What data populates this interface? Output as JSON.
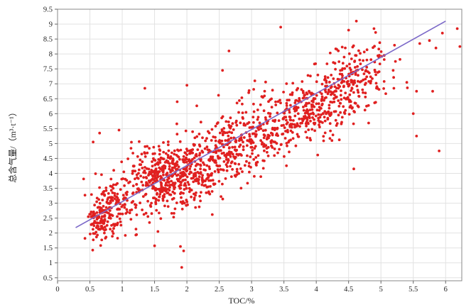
{
  "chart_data": {
    "type": "scatter",
    "title": "",
    "xlabel": "TOC/%",
    "ylabel": "总含气量/（m³·t⁻¹）",
    "xlim": [
      0,
      6.25
    ],
    "ylim": [
      0.4,
      9.5
    ],
    "x_ticks": [
      "0",
      "0.5",
      "1",
      "1.5",
      "2",
      "2.5",
      "3",
      "3.5",
      "4",
      "4.5",
      "5",
      "5.5",
      "6"
    ],
    "y_ticks": [
      "0.5",
      "1",
      "1.5",
      "2",
      "2.5",
      "3",
      "3.5",
      "4",
      "4.5",
      "5",
      "5.5",
      "6",
      "6.5",
      "7",
      "7.5",
      "8",
      "8.5",
      "9",
      "9.5"
    ],
    "grid": true,
    "marker_color": "#e02020",
    "trend_line_color": "#7b68c8",
    "trend_line": {
      "x": [
        0.28,
        6.0
      ],
      "y": [
        2.18,
        9.1
      ]
    },
    "clusters": [
      {
        "cx": 0.65,
        "cy": 2.5,
        "sx": 0.12,
        "sy": 0.45,
        "n": 120
      },
      {
        "cx": 0.95,
        "cy": 3.0,
        "sx": 0.15,
        "sy": 0.45,
        "n": 110
      },
      {
        "cx": 1.55,
        "cy": 3.8,
        "sx": 0.22,
        "sy": 0.55,
        "n": 300
      },
      {
        "cx": 2.05,
        "cy": 4.1,
        "sx": 0.22,
        "sy": 0.55,
        "n": 260
      },
      {
        "cx": 2.65,
        "cy": 4.8,
        "sx": 0.25,
        "sy": 0.6,
        "n": 200
      },
      {
        "cx": 3.3,
        "cy": 5.5,
        "sx": 0.25,
        "sy": 0.55,
        "n": 200
      },
      {
        "cx": 3.95,
        "cy": 6.2,
        "sx": 0.22,
        "sy": 0.5,
        "n": 180
      },
      {
        "cx": 4.45,
        "cy": 6.9,
        "sx": 0.25,
        "sy": 0.6,
        "n": 160
      },
      {
        "cx": 4.85,
        "cy": 7.5,
        "sx": 0.2,
        "sy": 0.5,
        "n": 70
      }
    ],
    "outliers": [
      [
        0.55,
        5.05
      ],
      [
        0.65,
        5.35
      ],
      [
        0.95,
        5.45
      ],
      [
        1.35,
        6.85
      ],
      [
        1.85,
        6.4
      ],
      [
        1.9,
        1.55
      ],
      [
        1.95,
        1.4
      ],
      [
        1.92,
        0.85
      ],
      [
        2.0,
        6.95
      ],
      [
        2.55,
        7.45
      ],
      [
        2.65,
        8.1
      ],
      [
        3.05,
        7.1
      ],
      [
        3.45,
        8.9
      ],
      [
        4.5,
        8.8
      ],
      [
        4.62,
        9.1
      ],
      [
        5.05,
        7.95
      ],
      [
        5.2,
        6.85
      ],
      [
        5.4,
        7.05
      ],
      [
        5.5,
        6.0
      ],
      [
        5.55,
        6.75
      ],
      [
        5.55,
        5.25
      ],
      [
        5.6,
        8.35
      ],
      [
        5.75,
        8.45
      ],
      [
        5.8,
        6.75
      ],
      [
        5.85,
        8.2
      ],
      [
        5.9,
        4.75
      ],
      [
        5.95,
        8.7
      ],
      [
        6.18,
        8.85
      ],
      [
        6.22,
        8.25
      ],
      [
        4.58,
        4.15
      ]
    ],
    "seed": 7
  }
}
